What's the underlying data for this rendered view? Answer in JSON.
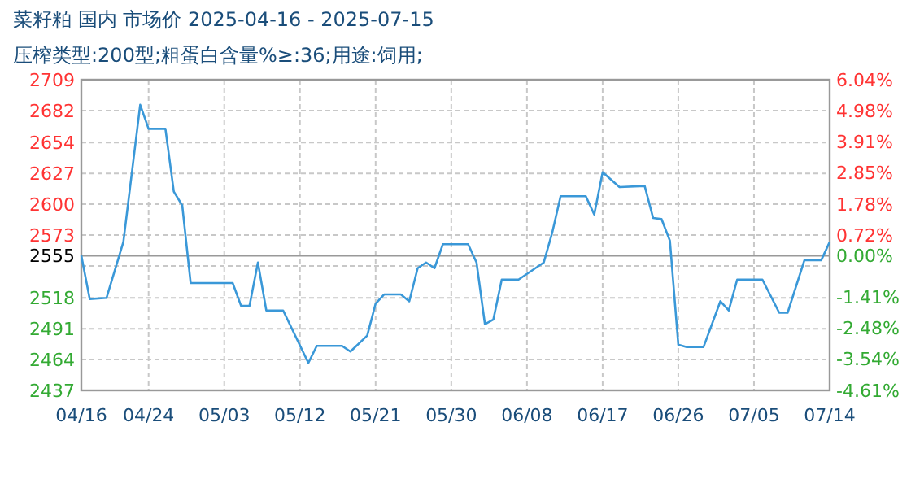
{
  "chart_data": {
    "type": "line",
    "title": "菜籽粕 国内 市场价 2025-04-16 - 2025-07-15",
    "subtitle": "压榨类型:200型;粗蛋白含量%≥:36;用途:饲用;",
    "x": [
      "2025-04-16",
      "2025-04-17",
      "2025-04-19",
      "2025-04-21",
      "2025-04-23",
      "2025-04-24",
      "2025-04-26",
      "2025-04-27",
      "2025-04-28",
      "2025-04-29",
      "2025-05-04",
      "2025-05-05",
      "2025-05-06",
      "2025-05-07",
      "2025-05-08",
      "2025-05-10",
      "2025-05-13",
      "2025-05-14",
      "2025-05-17",
      "2025-05-18",
      "2025-05-20",
      "2025-05-21",
      "2025-05-22",
      "2025-05-24",
      "2025-05-25",
      "2025-05-26",
      "2025-05-27",
      "2025-05-28",
      "2025-05-29",
      "2025-06-01",
      "2025-06-02",
      "2025-06-03",
      "2025-06-04",
      "2025-06-05",
      "2025-06-07",
      "2025-06-10",
      "2025-06-11",
      "2025-06-12",
      "2025-06-15",
      "2025-06-16",
      "2025-06-17",
      "2025-06-19",
      "2025-06-22",
      "2025-06-23",
      "2025-06-24",
      "2025-06-25",
      "2025-06-26",
      "2025-06-27",
      "2025-06-29",
      "2025-07-01",
      "2025-07-02",
      "2025-07-03",
      "2025-07-06",
      "2025-07-08",
      "2025-07-09",
      "2025-07-11",
      "2025-07-13",
      "2025-07-14"
    ],
    "series": [
      {
        "color": "#3a98d8",
        "values": [
          2555,
          2517,
          2518,
          2567,
          2687,
          2666,
          2666,
          2611,
          2599,
          2531,
          2531,
          2511,
          2511,
          2549,
          2507,
          2507,
          2461,
          2476,
          2476,
          2471,
          2485,
          2513,
          2521,
          2521,
          2515,
          2544,
          2549,
          2544,
          2565,
          2565,
          2549,
          2495,
          2499,
          2534,
          2534,
          2549,
          2575,
          2607,
          2607,
          2591,
          2628,
          2615,
          2616,
          2588,
          2587,
          2568,
          2477,
          2475,
          2475,
          2515,
          2507,
          2534,
          2534,
          2505,
          2505,
          2551,
          2551,
          2567
        ]
      }
    ],
    "xlim": [
      "2025-04-16",
      "2025-07-14"
    ],
    "xticks": [
      {
        "value": "2025-04-16",
        "label": "04/16"
      },
      {
        "value": "2025-04-24",
        "label": "04/24"
      },
      {
        "value": "2025-05-03",
        "label": "05/03"
      },
      {
        "value": "2025-05-12",
        "label": "05/12"
      },
      {
        "value": "2025-05-21",
        "label": "05/21"
      },
      {
        "value": "2025-05-30",
        "label": "05/30"
      },
      {
        "value": "2025-06-08",
        "label": "06/08"
      },
      {
        "value": "2025-06-17",
        "label": "06/17"
      },
      {
        "value": "2025-06-26",
        "label": "06/26"
      },
      {
        "value": "2025-07-05",
        "label": "07/05"
      },
      {
        "value": "2025-07-14",
        "label": "07/14"
      }
    ],
    "ylim": [
      2437,
      2709
    ],
    "yticks": [
      2437,
      2464,
      2491,
      2518,
      {
        "value": 2546,
        "label": null
      },
      2573,
      2600,
      2627,
      2654,
      2682,
      2709
    ],
    "y2lim": [
      -4.61,
      6.04
    ],
    "y2ticks": [
      {
        "value": -4.61,
        "label": "-4.61%"
      },
      {
        "value": -3.54,
        "label": "-3.54%"
      },
      {
        "value": -2.48,
        "label": "-2.48%"
      },
      {
        "value": -1.41,
        "label": "-1.41%"
      },
      {
        "value": 0,
        "label": "0.00%"
      },
      {
        "value": 0.72,
        "label": "0.72%"
      },
      {
        "value": 1.78,
        "label": "1.78%"
      },
      {
        "value": 2.85,
        "label": "2.85%"
      },
      {
        "value": 3.91,
        "label": "3.91%"
      },
      {
        "value": 4.98,
        "label": "4.98%"
      },
      {
        "value": 6.04,
        "label": "6.04%"
      }
    ],
    "ref_lines": [
      {
        "axis": "y",
        "value": 2555,
        "label": "2555",
        "color": "#999999"
      }
    ],
    "grid": true
  }
}
